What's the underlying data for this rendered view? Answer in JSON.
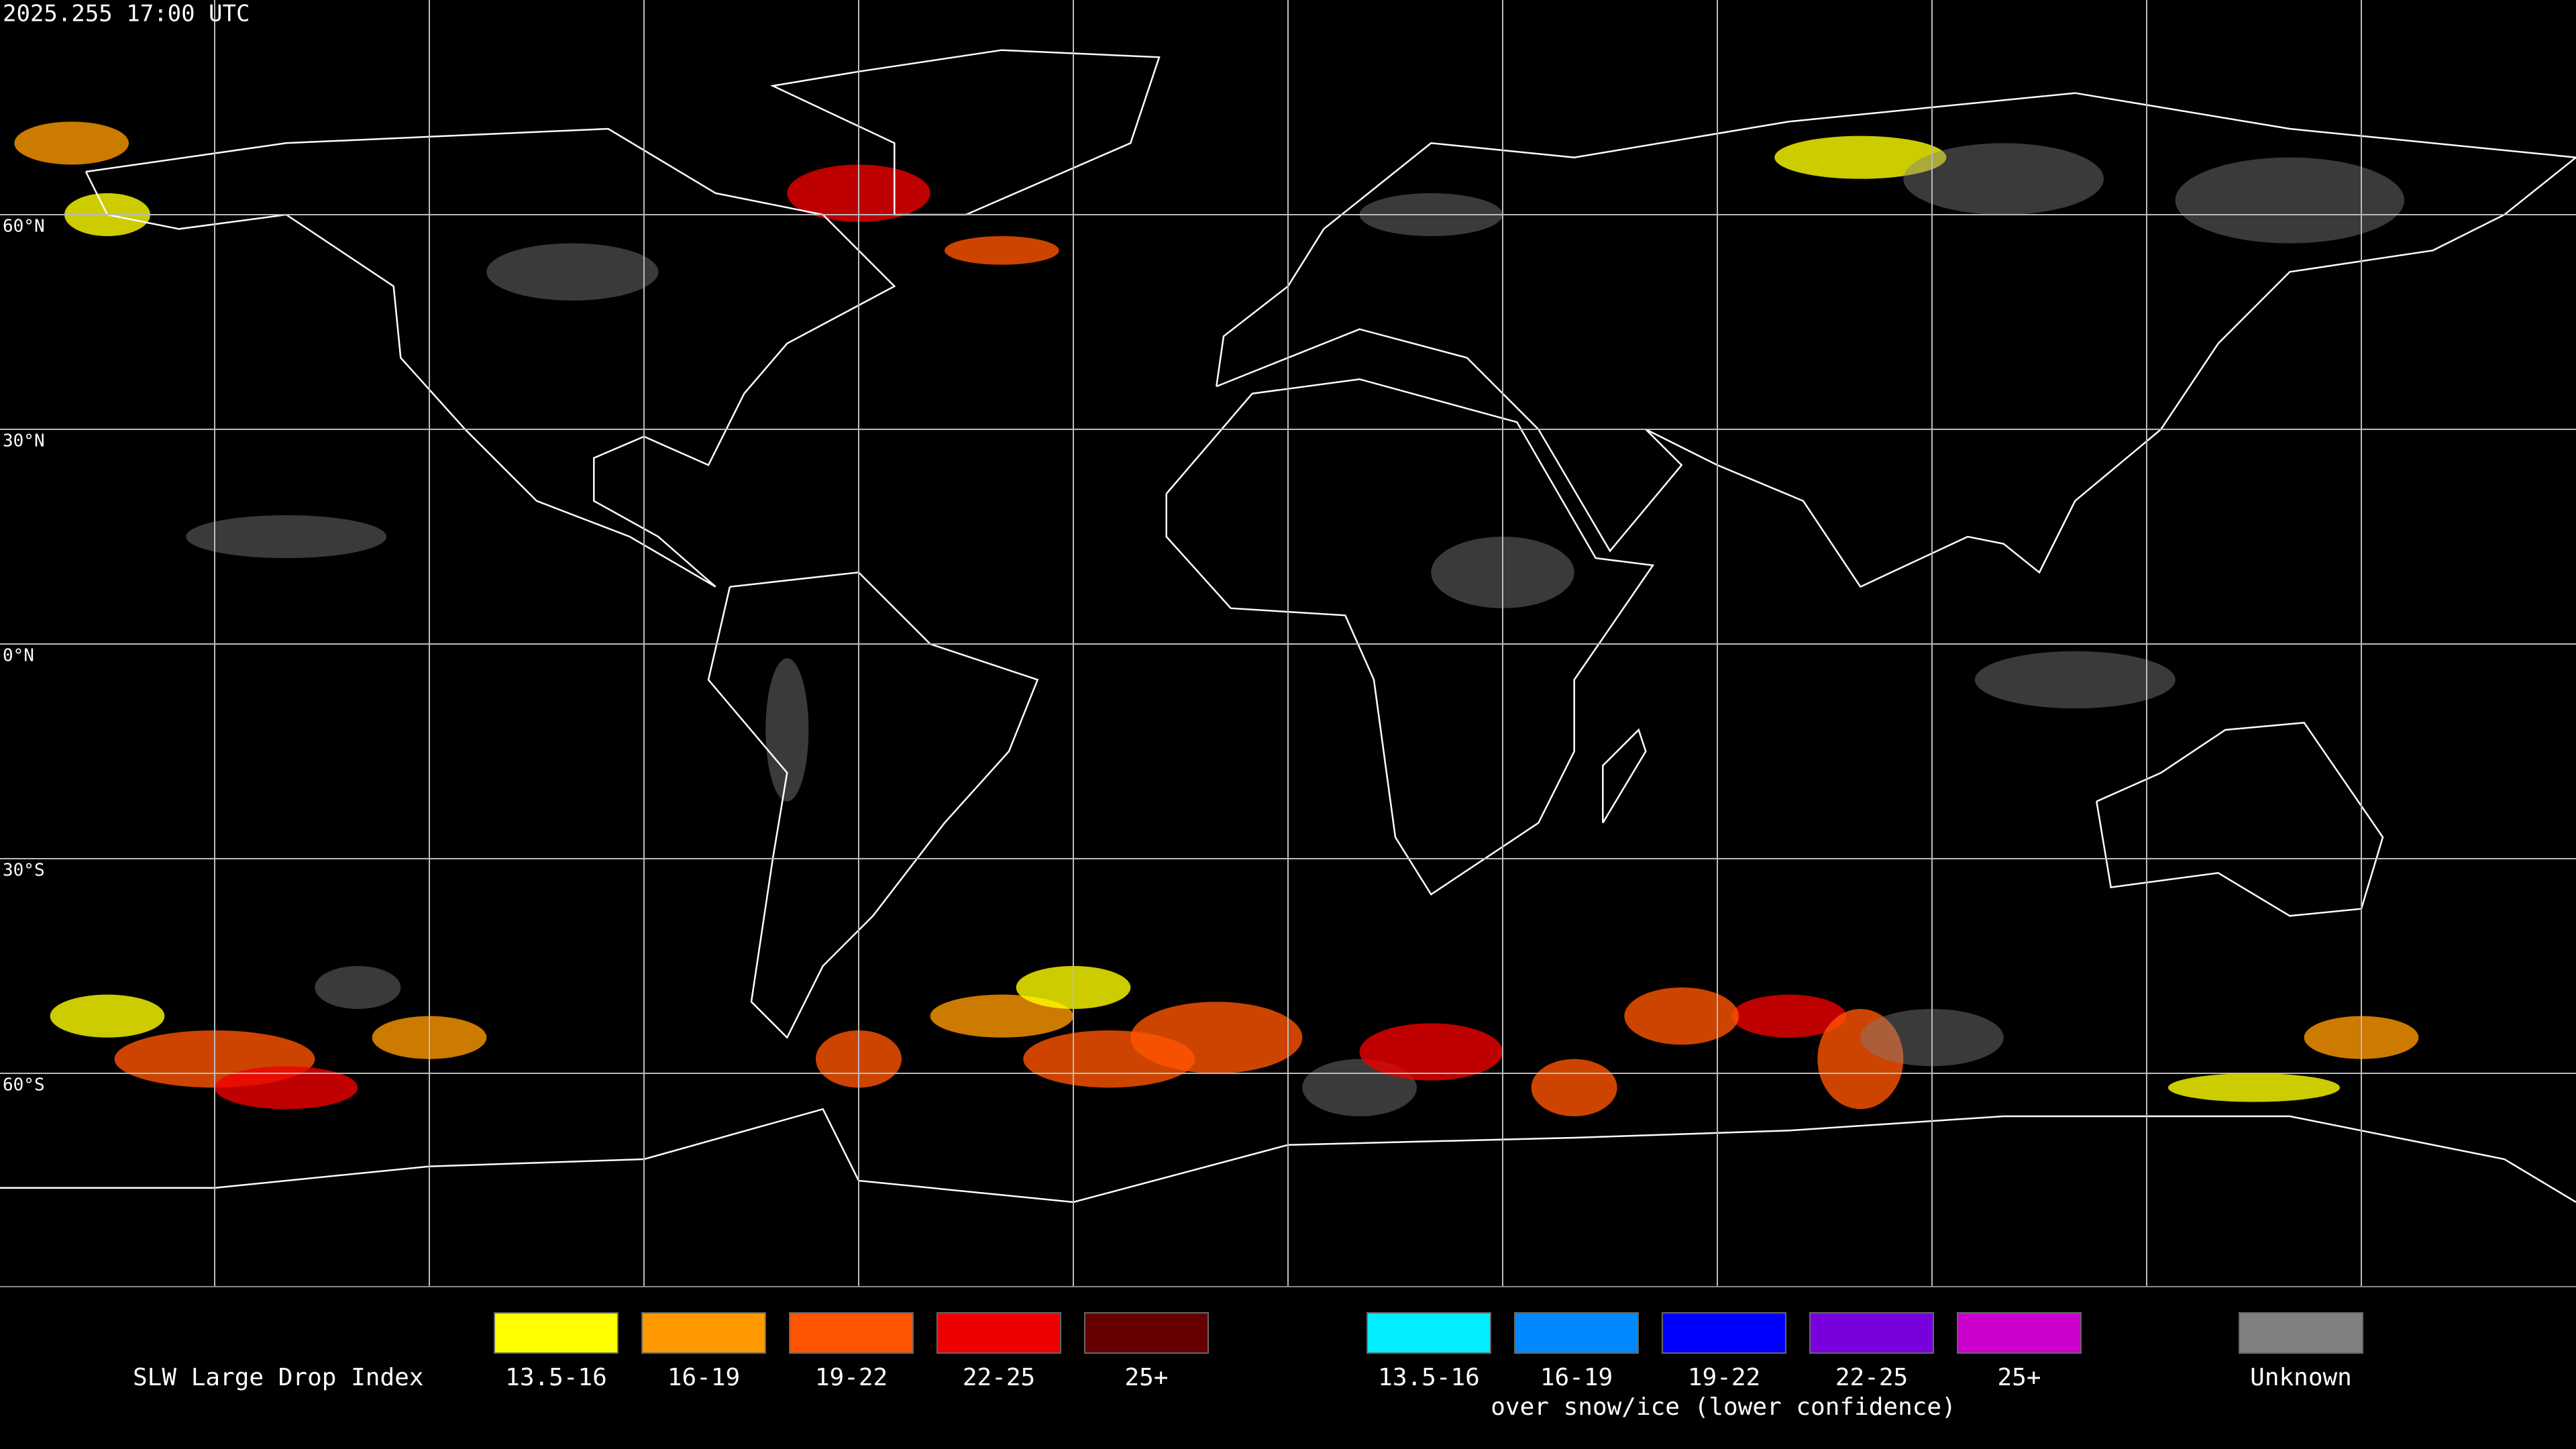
{
  "header": {
    "timestamp": "2025.255 17:00 UTC"
  },
  "map": {
    "lat_labels": [
      "60°N",
      "30°N",
      "0°N",
      "30°S",
      "60°S"
    ]
  },
  "legend": {
    "title": "SLW Large Drop Index",
    "warm": [
      {
        "label": "13.5-16",
        "color": "#ffff00"
      },
      {
        "label": "16-19",
        "color": "#ff9900"
      },
      {
        "label": "19-22",
        "color": "#ff5500"
      },
      {
        "label": "22-25",
        "color": "#ee0000"
      },
      {
        "label": "25+",
        "color": "#660000"
      }
    ],
    "cold": [
      {
        "label": "13.5-16",
        "color": "#00eeff"
      },
      {
        "label": "16-19",
        "color": "#0088ff"
      },
      {
        "label": "19-22",
        "color": "#0000ff"
      },
      {
        "label": "22-25",
        "color": "#7700dd"
      },
      {
        "label": "25+",
        "color": "#cc00cc"
      }
    ],
    "cold_note": "over snow/ice (lower confidence)",
    "unknown": {
      "label": "Unknown",
      "color": "#808080"
    }
  }
}
